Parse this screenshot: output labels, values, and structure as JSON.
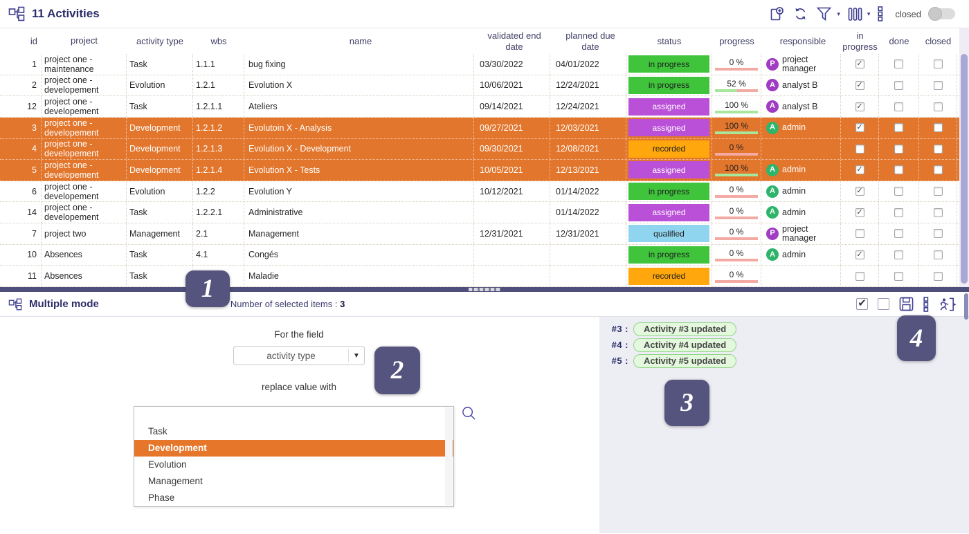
{
  "titlebar": {
    "title": "11 Activities",
    "closed_label": "closed"
  },
  "table": {
    "columns": [
      "id",
      "project",
      "activity type",
      "wbs",
      "name",
      "validated end date",
      "planned due date",
      "status",
      "progress",
      "responsible",
      "in progress",
      "done",
      "closed"
    ],
    "rows": [
      {
        "id": "1",
        "project": "project one - maintenance",
        "type": "Task",
        "wbs": "1.1.1",
        "name": "bug fixing",
        "validated": "03/30/2022",
        "due": "04/01/2022",
        "status": "in progress",
        "progress_label": "0 %",
        "progress_pct": 0,
        "responsible": {
          "initial": "P",
          "name": "project manager",
          "color": "purple"
        },
        "in_progress": true,
        "done": false,
        "closed": false,
        "selected": false
      },
      {
        "id": "2",
        "project": "project one - developement",
        "type": "Evolution",
        "wbs": "1.2.1",
        "name": "Evolution X",
        "validated": "10/06/2021",
        "due": "12/24/2021",
        "status": "in progress",
        "progress_label": "52 %",
        "progress_pct": 52,
        "responsible": {
          "initial": "A",
          "name": "analyst B",
          "color": "purple"
        },
        "in_progress": true,
        "done": false,
        "closed": false,
        "selected": false
      },
      {
        "id": "12",
        "project": "project one - developement",
        "type": "Task",
        "wbs": "1.2.1.1",
        "name": "Ateliers",
        "validated": "09/14/2021",
        "due": "12/24/2021",
        "status": "assigned",
        "progress_label": "100 %",
        "progress_pct": 100,
        "responsible": {
          "initial": "A",
          "name": "analyst B",
          "color": "purple"
        },
        "in_progress": true,
        "done": false,
        "closed": false,
        "selected": false
      },
      {
        "id": "3",
        "project": "project one - developement",
        "type": "Development",
        "wbs": "1.2.1.2",
        "name": "Evolutoin X - Analysis",
        "validated": "09/27/2021",
        "due": "12/03/2021",
        "status": "assigned",
        "progress_label": "100 %",
        "progress_pct": 100,
        "responsible": {
          "initial": "A",
          "name": "admin",
          "color": "green"
        },
        "in_progress": true,
        "done": false,
        "closed": false,
        "selected": true
      },
      {
        "id": "4",
        "project": "project one - developement",
        "type": "Development",
        "wbs": "1.2.1.3",
        "name": "Evolution X - Development",
        "validated": "09/30/2021",
        "due": "12/08/2021",
        "status": "recorded",
        "progress_label": "0 %",
        "progress_pct": 0,
        "responsible": null,
        "in_progress": false,
        "done": false,
        "closed": false,
        "selected": true
      },
      {
        "id": "5",
        "project": "project one - developement",
        "type": "Development",
        "wbs": "1.2.1.4",
        "name": "Evolution X - Tests",
        "validated": "10/05/2021",
        "due": "12/13/2021",
        "status": "assigned",
        "progress_label": "100 %",
        "progress_pct": 100,
        "responsible": {
          "initial": "A",
          "name": "admin",
          "color": "green"
        },
        "in_progress": true,
        "done": false,
        "closed": false,
        "selected": true
      },
      {
        "id": "6",
        "project": "project one - developement",
        "type": "Evolution",
        "wbs": "1.2.2",
        "name": "Evolution Y",
        "validated": "10/12/2021",
        "due": "01/14/2022",
        "status": "in progress",
        "progress_label": "0 %",
        "progress_pct": 0,
        "responsible": {
          "initial": "A",
          "name": "admin",
          "color": "green"
        },
        "in_progress": true,
        "done": false,
        "closed": false,
        "selected": false
      },
      {
        "id": "14",
        "project": "project one - developement",
        "type": "Task",
        "wbs": "1.2.2.1",
        "name": "Administrative",
        "validated": "",
        "due": "01/14/2022",
        "status": "assigned",
        "progress_label": "0 %",
        "progress_pct": 0,
        "responsible": {
          "initial": "A",
          "name": "admin",
          "color": "green"
        },
        "in_progress": true,
        "done": false,
        "closed": false,
        "selected": false
      },
      {
        "id": "7",
        "project": "project two",
        "type": "Management",
        "wbs": "2.1",
        "name": "Management",
        "validated": "12/31/2021",
        "due": "12/31/2021",
        "status": "qualified",
        "progress_label": "0 %",
        "progress_pct": 0,
        "responsible": {
          "initial": "P",
          "name": "project manager",
          "color": "purple"
        },
        "in_progress": false,
        "done": false,
        "closed": false,
        "selected": false
      },
      {
        "id": "10",
        "project": "Absences",
        "type": "Task",
        "wbs": "4.1",
        "name": "Congés",
        "validated": "",
        "due": "",
        "status": "in progress",
        "progress_label": "0 %",
        "progress_pct": 0,
        "responsible": {
          "initial": "A",
          "name": "admin",
          "color": "green"
        },
        "in_progress": true,
        "done": false,
        "closed": false,
        "selected": false
      },
      {
        "id": "11",
        "project": "Absences",
        "type": "Task",
        "wbs": "",
        "name": "Maladie",
        "validated": "",
        "due": "",
        "status": "recorded",
        "progress_label": "0 %",
        "progress_pct": 0,
        "responsible": null,
        "in_progress": false,
        "done": false,
        "closed": false,
        "selected": false
      }
    ]
  },
  "panel": {
    "title": "Multiple mode",
    "selected_items_label": "Number of selected items :",
    "selected_items_count": "3",
    "for_field_label": "For the field",
    "field_value": "activity type",
    "replace_label": "replace value with",
    "options": [
      "",
      "Task",
      "Development",
      "Evolution",
      "Management",
      "Phase"
    ],
    "selected_option": "Development",
    "notifications": [
      {
        "key": "#3 :",
        "msg": "Activity #3 updated"
      },
      {
        "key": "#4 :",
        "msg": "Activity #4 updated"
      },
      {
        "key": "#5 :",
        "msg": "Activity #5 updated"
      }
    ]
  },
  "badges": [
    "1",
    "2",
    "3",
    "4"
  ],
  "colors": {
    "selection": "#e2762c",
    "option_highlight": "#e6772a",
    "status_bg": {
      "in progress": "#3fc43c",
      "assigned": "#ba50d8",
      "recorded": "#ffa70c",
      "qualified": "#90d5f0"
    },
    "status_text": {
      "in progress": "#1e1e1e",
      "assigned": "#ffffff",
      "recorded": "#1e1e1e",
      "qualified": "#1e1e1e"
    },
    "avatar": {
      "purple": "#a03cc2",
      "green": "#2fb56b"
    },
    "progress_done": "#a7e79b",
    "progress_rest": "#f4aaa4",
    "accent_navy": "#2b2e68"
  }
}
